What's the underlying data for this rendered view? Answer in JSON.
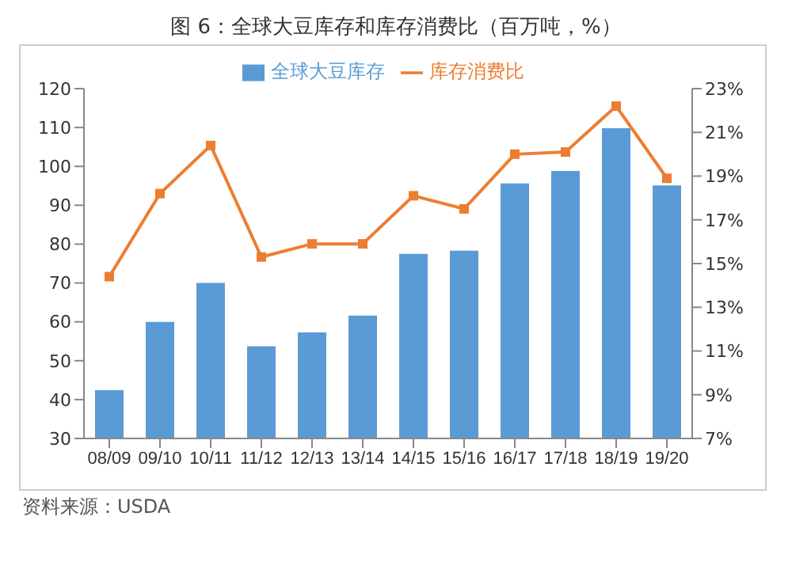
{
  "chart_data": {
    "type": "bar",
    "title": "图 6：全球大豆库存和库存消费比（百万吨，%）",
    "categories": [
      "08/09",
      "09/10",
      "10/11",
      "11/12",
      "12/13",
      "13/14",
      "14/15",
      "15/16",
      "16/17",
      "17/18",
      "18/19",
      "19/20"
    ],
    "series": [
      {
        "name": "全球大豆库存",
        "color": "#5b9bd5",
        "values": [
          42.4,
          60,
          70,
          53.7,
          57.3,
          61.6,
          77.5,
          78.3,
          95.6,
          98.8,
          109.8,
          95.1
        ]
      },
      {
        "name": "库存消费比",
        "type": "line",
        "axis": "y2",
        "color": "#ed7d31",
        "marker": "square",
        "values": [
          14.4,
          18.2,
          20.4,
          15.3,
          15.9,
          15.9,
          18.1,
          17.5,
          20,
          20.1,
          22.2,
          18.9
        ]
      }
    ],
    "ylim": [
      30,
      120
    ],
    "yticks": [
      30,
      40,
      50,
      60,
      70,
      80,
      90,
      100,
      110,
      120
    ],
    "y2lim": [
      7,
      23
    ],
    "y2ticks": [
      {
        "value": 7,
        "label": "7%"
      },
      {
        "value": 9,
        "label": "9%"
      },
      {
        "value": 11,
        "label": "11%"
      },
      {
        "value": 13,
        "label": "13%"
      },
      {
        "value": 15,
        "label": "15%"
      },
      {
        "value": 17,
        "label": "17%"
      },
      {
        "value": 19,
        "label": "19%"
      },
      {
        "value": 21,
        "label": "21%"
      },
      {
        "value": 23,
        "label": "23%"
      }
    ],
    "legend": "top",
    "grid": false,
    "annotations": [
      "资料来源：USDA"
    ]
  }
}
